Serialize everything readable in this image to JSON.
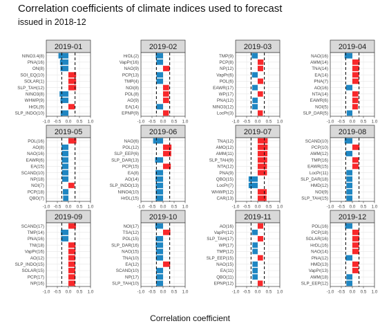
{
  "title": "Correlation coefficients of climate indices used to forecast",
  "subtitle": "issued in 2018-12",
  "xlabel": "Correlation coefficient",
  "colors": {
    "positive": "#f8282b",
    "negative": "#1f86c2",
    "strip": "#d9d9d9",
    "grid": "#e6e6e6"
  },
  "chart_data": [
    {
      "type": "bar",
      "orientation": "horizontal",
      "panel": "2019-01",
      "xlim": [
        -1.0,
        1.0
      ],
      "xticks": [
        "-1.0",
        "-0.5",
        "0.0",
        "0.5",
        "1.0"
      ],
      "threshold": [
        -0.3,
        0.3
      ],
      "categories": [
        "NINO3.4(8)",
        "PNA(16)",
        "ON(8)",
        "SOI_EQ(10)",
        "SOLAR(1)",
        "SLP_TAH(12)",
        "NINO3(8)",
        "WHWP(9)",
        "HrDL(9)",
        "SLP_INDO(10)"
      ],
      "values": [
        -0.45,
        -0.38,
        -0.36,
        0.35,
        0.35,
        0.35,
        -0.4,
        -0.36,
        0.28,
        -0.35
      ]
    },
    {
      "type": "bar",
      "orientation": "horizontal",
      "panel": "2019-02",
      "xlim": [
        -1.0,
        1.0
      ],
      "xticks": [
        "-1.0",
        "-0.5",
        "0.0",
        "0.5",
        "1.0"
      ],
      "threshold": [
        -0.3,
        0.3
      ],
      "categories": [
        "HrDL(2)",
        "VapPr(16)",
        "NAO(9)",
        "PCP(13)",
        "TMP(4)",
        "NOI(8)",
        "POL(8)",
        "AO(9)",
        "EA(14)",
        "EPNP(9)"
      ],
      "values": [
        -0.33,
        -0.3,
        0.3,
        -0.3,
        -0.3,
        0.27,
        0.27,
        0.27,
        -0.3,
        0.26
      ]
    },
    {
      "type": "bar",
      "orientation": "horizontal",
      "panel": "2019-03",
      "xlim": [
        -1.0,
        1.0
      ],
      "xticks": [
        "-1.0",
        "-0.5",
        "0.0",
        "0.5",
        "1.0"
      ],
      "threshold": [
        -0.3,
        0.3
      ],
      "categories": [
        "TMP(9)",
        "PCP(8)",
        "NP(12)",
        "VapPr(6)",
        "POL(6)",
        "EAWR(17)",
        "WP(17)",
        "PNA(12)",
        "NINO3(12)",
        "LocPr(3)"
      ],
      "values": [
        -0.27,
        0.26,
        0.25,
        -0.26,
        0.25,
        -0.25,
        0.24,
        -0.24,
        -0.25,
        0.23
      ]
    },
    {
      "type": "bar",
      "orientation": "horizontal",
      "panel": "2019-04",
      "xlim": [
        -1.0,
        1.0
      ],
      "xticks": [
        "-1.0",
        "-0.5",
        "0.0",
        "0.5",
        "1.0"
      ],
      "threshold": [
        -0.3,
        0.3
      ],
      "categories": [
        "NAO(16)",
        "AMM(14)",
        "TNA(14)",
        "EA(14)",
        "PNA(7)",
        "AO(16)",
        "NTA(14)",
        "EAWR(6)",
        "NOI(5)",
        "SLP_DAR(5)"
      ],
      "values": [
        -0.35,
        0.33,
        0.3,
        0.3,
        0.29,
        -0.28,
        0.27,
        0.27,
        0.25,
        -0.25
      ]
    },
    {
      "type": "bar",
      "orientation": "horizontal",
      "panel": "2019-05",
      "xlim": [
        -1.0,
        1.0
      ],
      "xticks": [
        "-1.0",
        "-0.5",
        "0.0",
        "0.5",
        "1.0"
      ],
      "threshold": [
        -0.3,
        0.3
      ],
      "categories": [
        "POL(16)",
        "AO(8)",
        "NAO(16)",
        "EAWR(6)",
        "EA(15)",
        "SCAND(10)",
        "NP(18)",
        "NOI(7)",
        "PCP(18)",
        "QBO(7)"
      ],
      "values": [
        0.36,
        -0.31,
        -0.3,
        -0.3,
        -0.29,
        -0.29,
        -0.28,
        0.27,
        -0.25,
        -0.24
      ]
    },
    {
      "type": "bar",
      "orientation": "horizontal",
      "panel": "2019-06",
      "xlim": [
        -1.0,
        1.0
      ],
      "xticks": [
        "-1.0",
        "-0.5",
        "0.0",
        "0.5",
        "1.0"
      ],
      "threshold": [
        -0.3,
        0.3
      ],
      "categories": [
        "NAO(6)",
        "POL(12)",
        "SLP_EEP(6)",
        "SLP_DAR(13)",
        "PCP(15)",
        "EA(8)",
        "AO(14)",
        "SLP_INDO(13)",
        "NINO4(10)",
        "HrDL(15)"
      ],
      "values": [
        -0.45,
        0.38,
        0.37,
        -0.36,
        0.35,
        -0.34,
        -0.34,
        -0.33,
        -0.33,
        -0.33
      ]
    },
    {
      "type": "bar",
      "orientation": "horizontal",
      "panel": "2019-07",
      "xlim": [
        -1.0,
        1.0
      ],
      "xticks": [
        "-1.0",
        "-0.5",
        "0.0",
        "0.5",
        "1.0"
      ],
      "threshold": [
        -0.3,
        0.3
      ],
      "categories": [
        "TNA(12)",
        "AMO(12)",
        "AMM(11)",
        "SLP_TAH(9)",
        "NTA(12)",
        "PNA(9)",
        "QBO(15)",
        "LocPr(7)",
        "WHWP(12)",
        "CAR(13)"
      ],
      "values": [
        0.45,
        0.45,
        0.44,
        0.43,
        0.42,
        0.42,
        -0.41,
        -0.41,
        0.41,
        0.4
      ]
    },
    {
      "type": "bar",
      "orientation": "horizontal",
      "panel": "2019-08",
      "xlim": [
        -1.0,
        1.0
      ],
      "xticks": [
        "-1.0",
        "-0.5",
        "0.0",
        "0.5",
        "1.0"
      ],
      "threshold": [
        -0.3,
        0.3
      ],
      "categories": [
        "SCAND(10)",
        "PCP(10)",
        "AMM(12)",
        "TMP(16)",
        "EAWR(15)",
        "LocPr(11)",
        "SLP_DAR(18)",
        "HMD(12)",
        "NOI(9)",
        "SLP_TAH(15)"
      ],
      "values": [
        -0.35,
        0.32,
        -0.3,
        0.28,
        0.28,
        -0.27,
        -0.27,
        -0.27,
        -0.27,
        -0.27
      ]
    },
    {
      "type": "bar",
      "orientation": "horizontal",
      "panel": "2019-09",
      "xlim": [
        -1.0,
        1.0
      ],
      "xticks": [
        "-1.0",
        "-0.5",
        "0.0",
        "0.5",
        "1.0"
      ],
      "threshold": [
        -0.3,
        0.3
      ],
      "categories": [
        "SCAND(17)",
        "TMP(14)",
        "PNA(16)",
        "TNI(18)",
        "VapPr(16)",
        "AO(12)",
        "SLP_INDO(15)",
        "SOLAR(15)",
        "PCP(17)",
        "NP(16)"
      ],
      "values": [
        0.34,
        -0.34,
        -0.33,
        0.32,
        0.32,
        0.31,
        0.31,
        0.31,
        0.31,
        0.3
      ]
    },
    {
      "type": "bar",
      "orientation": "horizontal",
      "panel": "2019-10",
      "xlim": [
        -1.0,
        1.0
      ],
      "xticks": [
        "-1.0",
        "-0.5",
        "0.0",
        "0.5",
        "1.0"
      ],
      "threshold": [
        -0.3,
        0.3
      ],
      "categories": [
        "NOI(17)",
        "TSA(12)",
        "POL(15)",
        "SLP_DAR(16)",
        "NAO(15)",
        "TNA(10)",
        "EA(12)",
        "SCAND(10)",
        "NP(17)",
        "SLP_TAH(10)"
      ],
      "values": [
        -0.35,
        0.33,
        -0.33,
        -0.33,
        -0.32,
        -0.32,
        0.32,
        -0.31,
        -0.31,
        -0.31
      ]
    },
    {
      "type": "bar",
      "orientation": "horizontal",
      "panel": "2019-11",
      "xlim": [
        -1.0,
        1.0
      ],
      "xticks": [
        "-1.0",
        "-0.5",
        "0.0",
        "0.5",
        "1.0"
      ],
      "threshold": [
        -0.3,
        0.3
      ],
      "categories": [
        "AO(16)",
        "VapPr(12)",
        "SLP_TAH(17)",
        "WP(17)",
        "TMP(12)",
        "SLP_EEP(15)",
        "NAO(15)",
        "EA(11)",
        "QBO(11)",
        "EPNP(12)"
      ],
      "values": [
        0.25,
        -0.26,
        0.25,
        -0.24,
        -0.24,
        0.24,
        -0.24,
        -0.24,
        -0.24,
        0.23
      ]
    },
    {
      "type": "bar",
      "orientation": "horizontal",
      "panel": "2019-12",
      "xlim": [
        -1.0,
        1.0
      ],
      "xticks": [
        "-1.0",
        "-0.5",
        "0.0",
        "0.5",
        "1.0"
      ],
      "threshold": [
        -0.3,
        0.3
      ],
      "categories": [
        "POL(16)",
        "PCP(18)",
        "SOLAR(16)",
        "HrDL(16)",
        "NAO(14)",
        "PNA(12)",
        "HMD(13)",
        "VapPr(13)",
        "AMM(18)",
        "SLP_EEP(12)"
      ],
      "values": [
        -0.33,
        0.31,
        0.31,
        0.3,
        0.3,
        -0.3,
        0.28,
        0.28,
        -0.27,
        -0.27
      ]
    }
  ]
}
